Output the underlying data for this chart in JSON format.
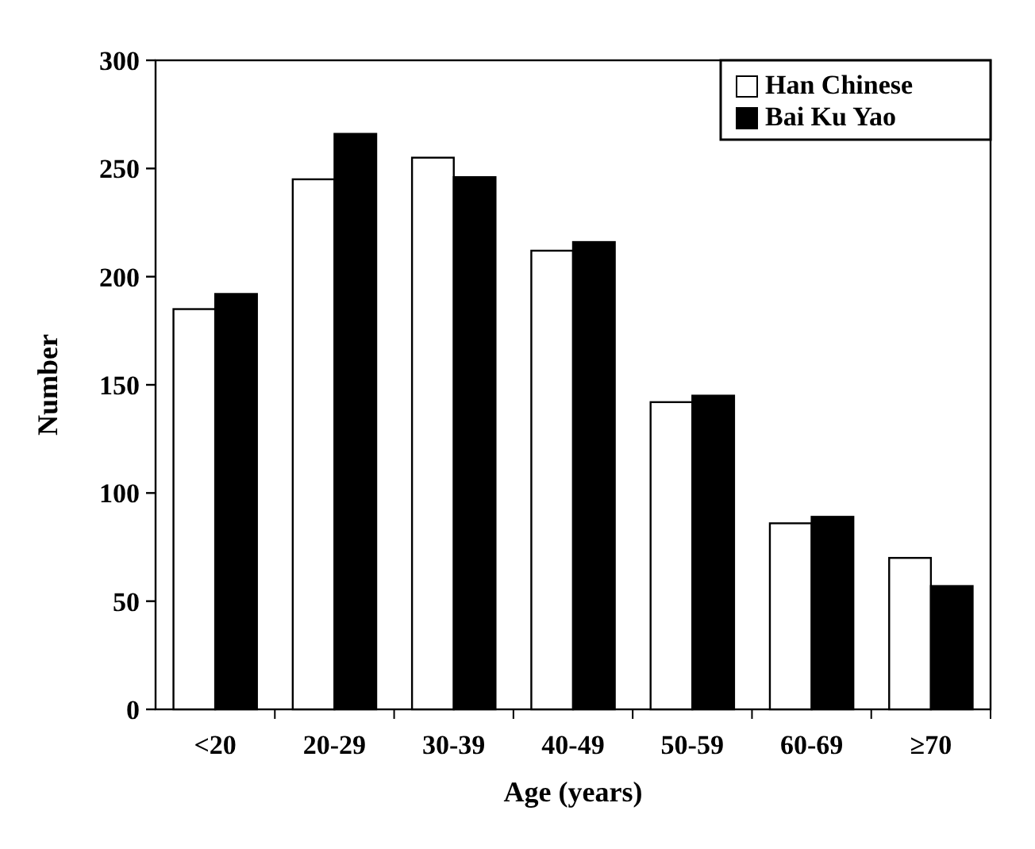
{
  "chart_data": {
    "type": "bar",
    "xlabel": "Age (years)",
    "ylabel": "Number",
    "categories": [
      "<20",
      "20-29",
      "30-39",
      "40-49",
      "50-59",
      "60-69",
      "≥70"
    ],
    "series": [
      {
        "name": "Han Chinese",
        "color": "#ffffff",
        "values": [
          185,
          245,
          255,
          212,
          142,
          86,
          70
        ]
      },
      {
        "name": "Bai Ku Yao",
        "color": "#000000",
        "values": [
          192,
          266,
          246,
          216,
          145,
          89,
          57
        ]
      }
    ],
    "ylim": [
      0,
      300
    ],
    "yticks": [
      0,
      50,
      100,
      150,
      200,
      250,
      300
    ],
    "legend": "top right"
  }
}
